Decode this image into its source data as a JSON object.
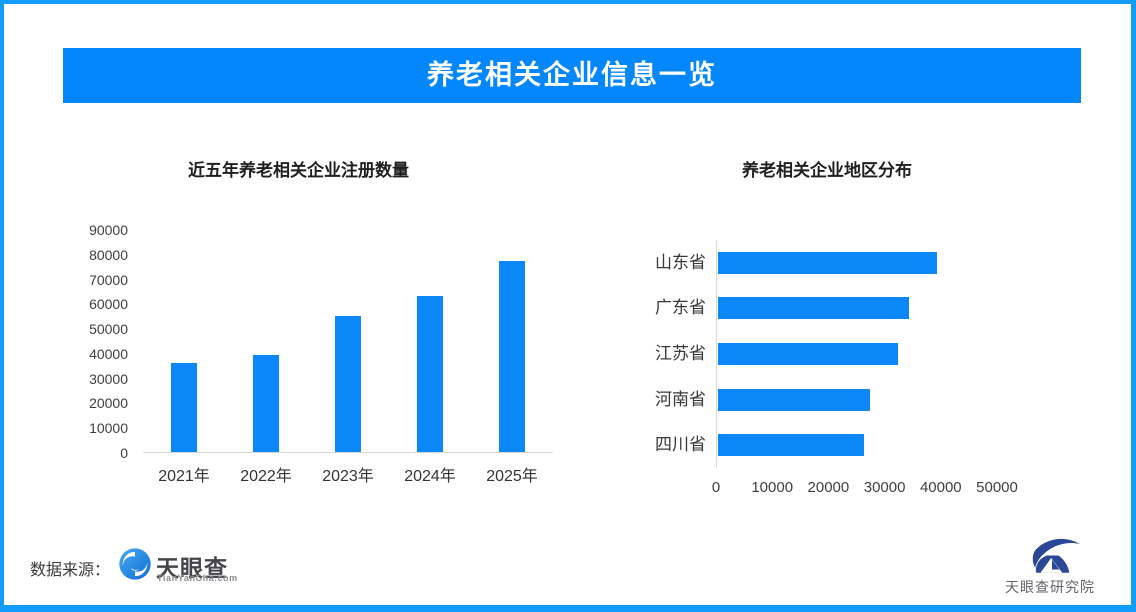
{
  "banner": {
    "title": "养老相关企业信息一览"
  },
  "chart_data": [
    {
      "id": "registrations",
      "type": "bar",
      "orientation": "vertical",
      "title": "近五年养老相关企业注册数量",
      "categories": [
        "2021年",
        "2022年",
        "2023年",
        "2024年",
        "2025年"
      ],
      "values": [
        36000,
        39000,
        55000,
        63000,
        77000
      ],
      "xlabel": "",
      "ylabel": "",
      "ylim": [
        0,
        90000
      ],
      "ytick_step": 10000,
      "grid": false,
      "legend": "none",
      "bar_color": "#0b87f7"
    },
    {
      "id": "regions",
      "type": "bar",
      "orientation": "horizontal",
      "title": "养老相关企业地区分布",
      "categories": [
        "山东省",
        "广东省",
        "江苏省",
        "河南省",
        "四川省"
      ],
      "values": [
        39000,
        34000,
        32000,
        27000,
        26000
      ],
      "xlabel": "",
      "ylabel": "",
      "xlim": [
        0,
        50000
      ],
      "xtick_step": 10000,
      "grid": false,
      "legend": "none",
      "bar_color": "#0b87f7"
    }
  ],
  "footer": {
    "source_label": "数据来源：",
    "tyc_name": "天眼查",
    "tyc_domain": "TianYanCha.com",
    "institute_name": "天眼查研究院"
  },
  "colors": {
    "frame_blue": "#129dfe",
    "banner_blue": "#0487fc",
    "bar_blue": "#0b87f7",
    "axis_line_gray": "#d9d9d9",
    "text_dark": "#1f1f1f"
  }
}
